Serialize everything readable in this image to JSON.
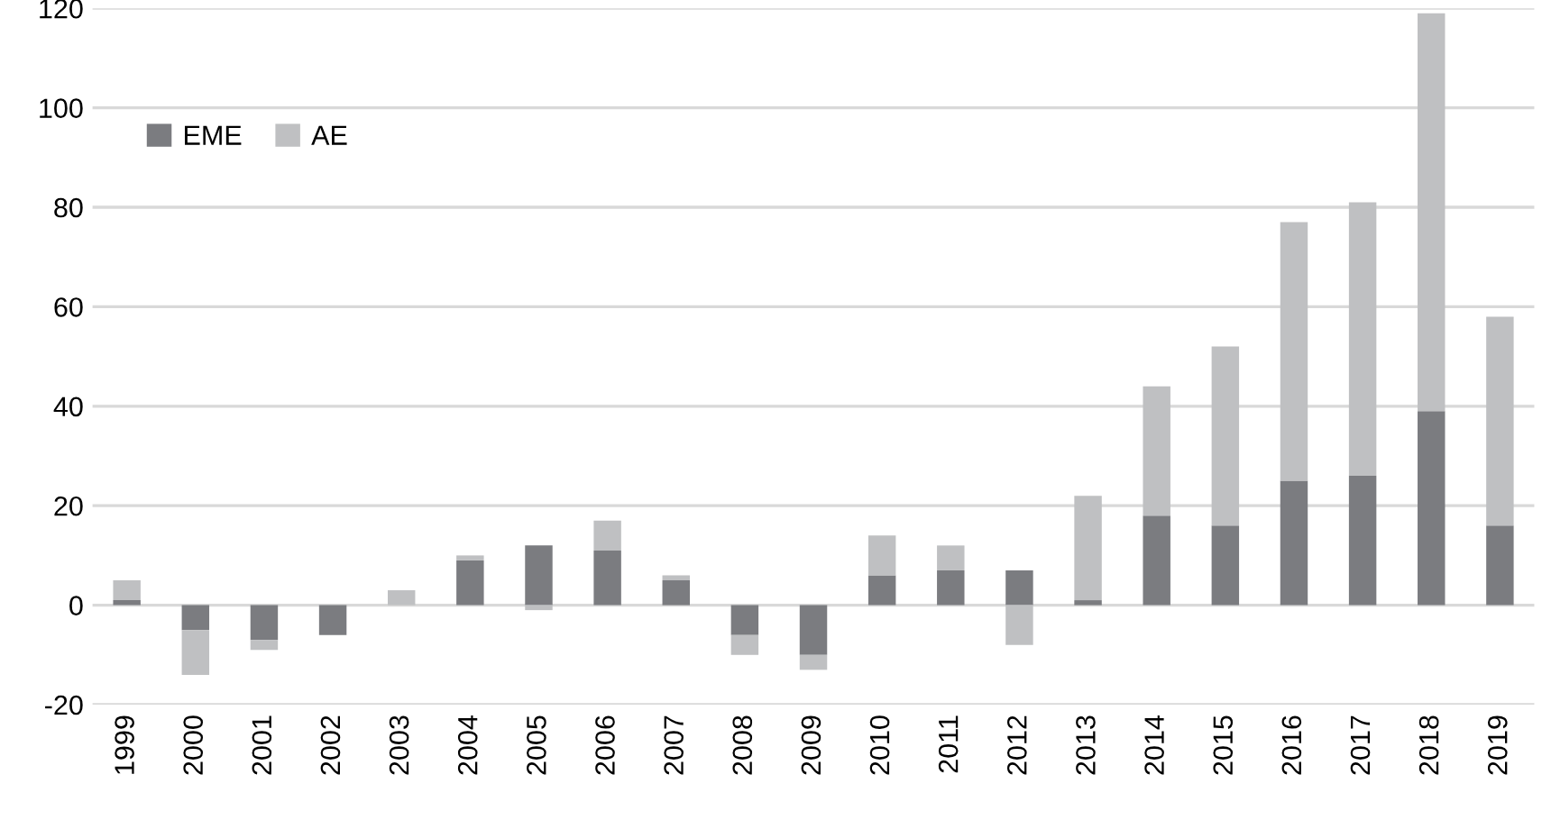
{
  "chart_data": {
    "type": "bar",
    "stacked": true,
    "categories": [
      "1999",
      "2000",
      "2001",
      "2002",
      "2003",
      "2004",
      "2005",
      "2006",
      "2007",
      "2008",
      "2009",
      "2010",
      "2011",
      "2012",
      "2013",
      "2014",
      "2015",
      "2016",
      "2017",
      "2018",
      "2019"
    ],
    "series": [
      {
        "name": "EME",
        "color": "#7b7c80",
        "values": [
          1,
          -5,
          -7,
          -6,
          0,
          9,
          12,
          11,
          5,
          -6,
          -10,
          6,
          7,
          7,
          1,
          18,
          16,
          25,
          26,
          39,
          16
        ]
      },
      {
        "name": "AE",
        "color": "#bfc0c2",
        "values": [
          4,
          -9,
          -2,
          0,
          3,
          1,
          -1,
          6,
          1,
          -4,
          -3,
          8,
          5,
          -8,
          21,
          26,
          36,
          52,
          55,
          80,
          42
        ]
      }
    ],
    "ylim": [
      -20,
      120
    ],
    "yticks": [
      -20,
      0,
      20,
      40,
      60,
      80,
      100,
      120
    ],
    "grid": "y",
    "legend": "top left"
  }
}
